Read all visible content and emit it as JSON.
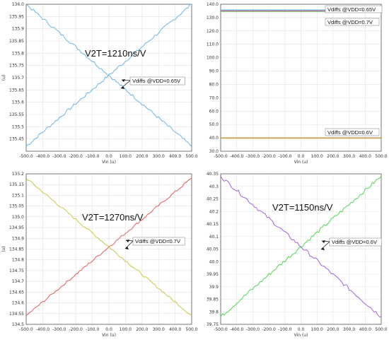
{
  "chart_data": [
    {
      "type": "line",
      "position": "top-left",
      "xlim": [
        -500,
        500
      ],
      "ylim": [
        135.4,
        136.0
      ],
      "x_ticks": [
        "-500.0",
        "-400.0",
        "-300.0",
        "-200.0",
        "-100.0",
        "0.0",
        "100.0",
        "200.0",
        "300.0",
        "400.0",
        "500.0"
      ],
      "y_ticks": [
        "135.45",
        "135.5",
        "135.55",
        "135.6",
        "135.65",
        "135.7",
        "135.75",
        "135.8",
        "135.85",
        "135.9",
        "135.95",
        "136.0"
      ],
      "y_tick_values": [
        135.45,
        135.5,
        135.55,
        135.6,
        135.65,
        135.7,
        135.75,
        135.8,
        135.85,
        135.9,
        135.95,
        136.0
      ],
      "xlabel": "Vin (u)",
      "ylabel": "(u)",
      "title": "V2T=1210ns/V",
      "annotation": "Vdiffs @VDD=0.65V",
      "series": [
        {
          "color": "#5aaee0",
          "start": 135.42,
          "end": 136.0,
          "noise": 0.012
        },
        {
          "color": "#5aaee0",
          "start": 136.0,
          "end": 135.42,
          "noise": 0.012
        }
      ]
    },
    {
      "type": "line",
      "position": "top-right",
      "xlim": [
        -500,
        500
      ],
      "ylim": [
        30,
        140
      ],
      "x_ticks": [
        "-500.0",
        "-400.0",
        "-300.0",
        "-200.0",
        "-100.0",
        "0.0",
        "100.0",
        "200.0",
        "300.0",
        "400.0",
        "500.0"
      ],
      "y_ticks": [
        "30.0",
        "40.0",
        "50.0",
        "60.0",
        "70.0",
        "80.0",
        "90.0",
        "100.0",
        "110.0",
        "120.0",
        "130.0",
        "140.0"
      ],
      "y_tick_values": [
        30,
        40,
        50,
        60,
        70,
        80,
        90,
        100,
        110,
        120,
        130,
        140
      ],
      "xlabel": "Vin (u)",
      "labels": [
        "Vdiffs @VDD=0.65V",
        "Vdiffs @VDD=0.7V",
        "Vdiffs @VDD=0.6V"
      ],
      "series": [
        {
          "color": "#5aaee0",
          "start": 135.7,
          "end": 135.7,
          "noise": 0
        },
        {
          "color": "#9a7fcf",
          "start": 135.3,
          "end": 135.3,
          "noise": 0
        },
        {
          "color": "#e57a5a",
          "start": 134.8,
          "end": 134.8,
          "noise": 0
        },
        {
          "color": "#6cc06c",
          "start": 134.5,
          "end": 134.5,
          "noise": 0
        },
        {
          "color": "#e57a5a",
          "start": 40.1,
          "end": 40.1,
          "noise": 0
        },
        {
          "color": "#6cc06c",
          "start": 39.8,
          "end": 39.8,
          "noise": 0
        },
        {
          "color": "#e0a040",
          "start": 39.6,
          "end": 39.6,
          "noise": 0
        }
      ]
    },
    {
      "type": "line",
      "position": "bottom-left",
      "xlim": [
        -500,
        500
      ],
      "ylim": [
        134.5,
        135.2
      ],
      "x_ticks": [
        "-500.0",
        "-400.0",
        "-300.0",
        "-200.0",
        "-100.0",
        "0.0",
        "100.0",
        "200.0",
        "300.0",
        "400.0",
        "500.0"
      ],
      "y_ticks": [
        "134.5",
        "134.55",
        "134.6",
        "134.65",
        "134.7",
        "134.75",
        "134.8",
        "134.85",
        "134.9",
        "134.95",
        "135.0",
        "135.05",
        "135.1",
        "135.15",
        "135.2"
      ],
      "y_tick_values": [
        134.5,
        134.55,
        134.6,
        134.65,
        134.7,
        134.75,
        134.8,
        134.85,
        134.9,
        134.95,
        135.0,
        135.05,
        135.1,
        135.15,
        135.2
      ],
      "xlabel": "Vin (u)",
      "ylabel": "(u)",
      "title": "V2T=1270ns/V",
      "annotation": "Vdiffs @VDD=0.7V",
      "series": [
        {
          "color": "#e84848",
          "start": 134.54,
          "end": 135.18,
          "noise": 0.01
        },
        {
          "color": "#c9c030",
          "start": 135.18,
          "end": 134.54,
          "noise": 0.01
        }
      ]
    },
    {
      "type": "line",
      "position": "bottom-right",
      "xlim": [
        -500,
        500
      ],
      "ylim": [
        39.75,
        40.35
      ],
      "x_ticks": [
        "-500.0",
        "-400.0",
        "-300.0",
        "-200.0",
        "-100.0",
        "0.0",
        "100.0",
        "200.0",
        "300.0",
        "400.0",
        "500.0"
      ],
      "y_ticks": [
        "39.75",
        "39.8",
        "39.85",
        "39.9",
        "39.95",
        "40.0",
        "40.05",
        "40.1",
        "40.15",
        "40.2",
        "40.25",
        "40.3",
        "40.35"
      ],
      "y_tick_values": [
        39.75,
        39.8,
        39.85,
        39.9,
        39.95,
        40.0,
        40.05,
        40.1,
        40.15,
        40.2,
        40.25,
        40.3,
        40.35
      ],
      "xlabel": "Vin (u)",
      "title": "V2T=1150ns/V",
      "annotation": "Vdiffs @VDD=0.6V",
      "series": [
        {
          "color": "#3ed43e",
          "start": 39.78,
          "end": 40.34,
          "noise": 0.014
        },
        {
          "color": "#9a52d8",
          "start": 40.34,
          "end": 39.78,
          "noise": 0.014
        }
      ]
    }
  ]
}
